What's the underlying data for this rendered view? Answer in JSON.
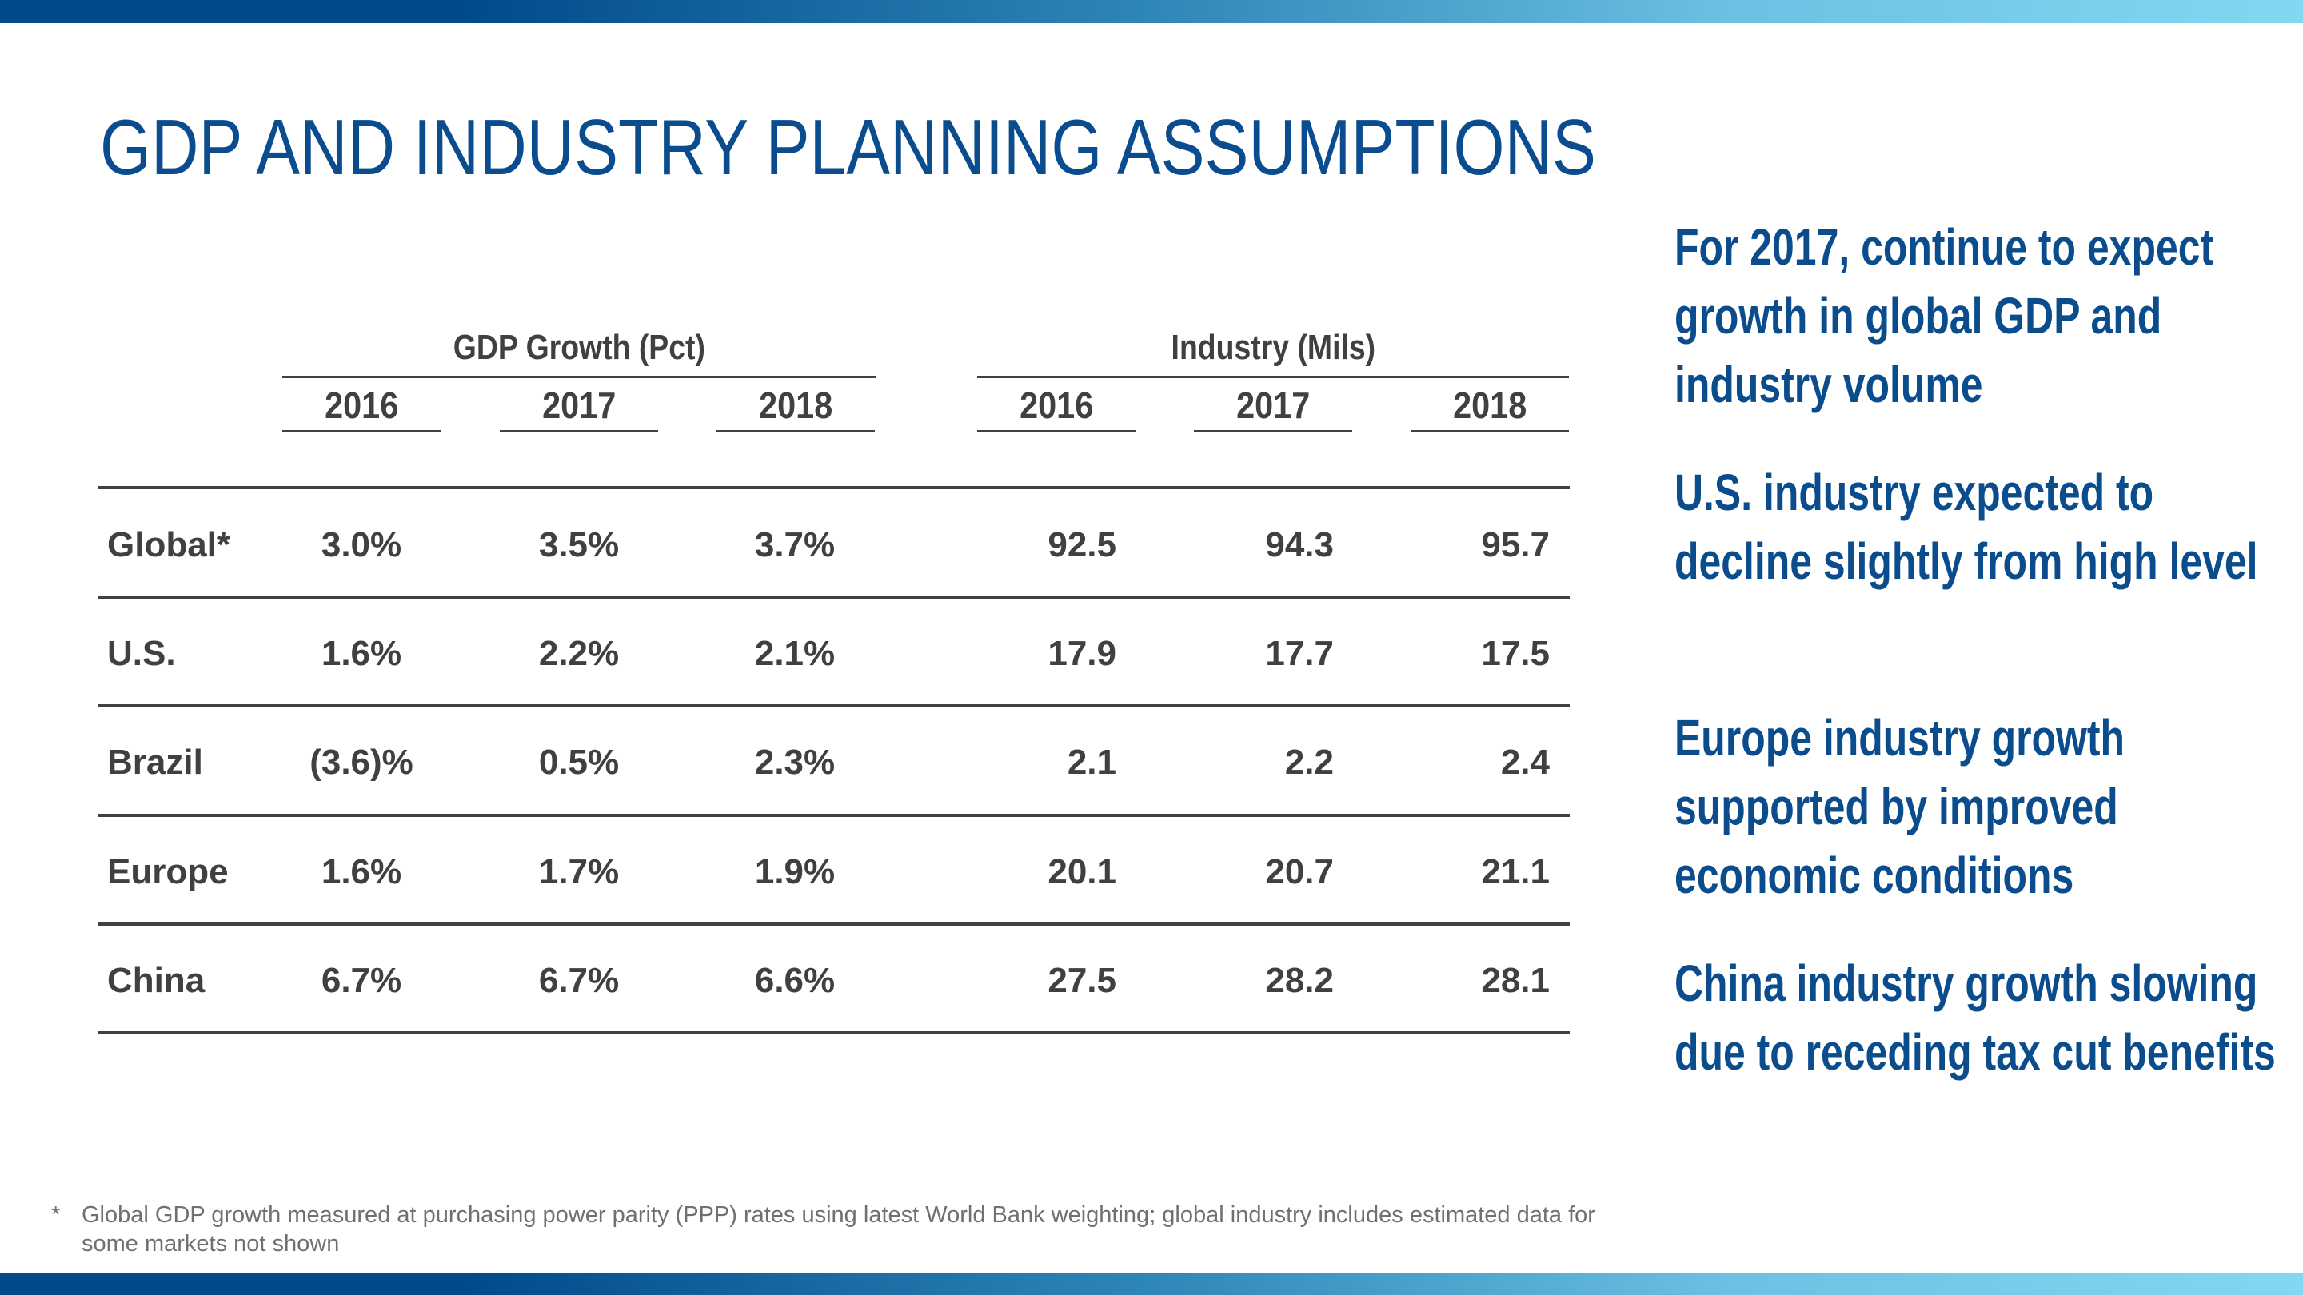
{
  "title": "GDP AND INDUSTRY PLANNING ASSUMPTIONS",
  "table": {
    "groups": [
      "GDP Growth (Pct)",
      "Industry (Mils)"
    ],
    "years": [
      "2016",
      "2017",
      "2018",
      "2016",
      "2017",
      "2018"
    ],
    "rows": [
      {
        "label": "Global*",
        "gdp": [
          "3.0%",
          "3.5%",
          "3.7%"
        ],
        "industry": [
          "92.5",
          "94.3",
          "95.7"
        ]
      },
      {
        "label": "U.S.",
        "gdp": [
          "1.6%",
          "2.2%",
          "2.1%"
        ],
        "industry": [
          "17.9",
          "17.7",
          "17.5"
        ]
      },
      {
        "label": "Brazil",
        "gdp": [
          "(3.6)%",
          "0.5%",
          "2.3%"
        ],
        "industry": [
          "2.1",
          "2.2",
          "2.4"
        ]
      },
      {
        "label": "Europe",
        "gdp": [
          "1.6%",
          "1.7%",
          "1.9%"
        ],
        "industry": [
          "20.1",
          "20.7",
          "21.1"
        ]
      },
      {
        "label": "China",
        "gdp": [
          "6.7%",
          "6.7%",
          "6.6%"
        ],
        "industry": [
          "27.5",
          "28.2",
          "28.1"
        ]
      }
    ]
  },
  "commentary": [
    "For 2017, continue to expect growth in global GDP and industry volume",
    "U.S. industry expected to decline slightly from high level",
    "Europe industry growth supported by improved economic conditions",
    "China industry growth slowing due to receding tax cut benefits"
  ],
  "footnote": {
    "marker": "*",
    "text": "Global GDP growth measured at purchasing power parity (PPP) rates using latest World Bank weighting; global industry includes estimated data for some markets not shown"
  },
  "colors": {
    "title": "#0a4c8e",
    "table_text": "#404040",
    "accent_dark": "#004a8a",
    "accent_light": "#82d8f0"
  }
}
